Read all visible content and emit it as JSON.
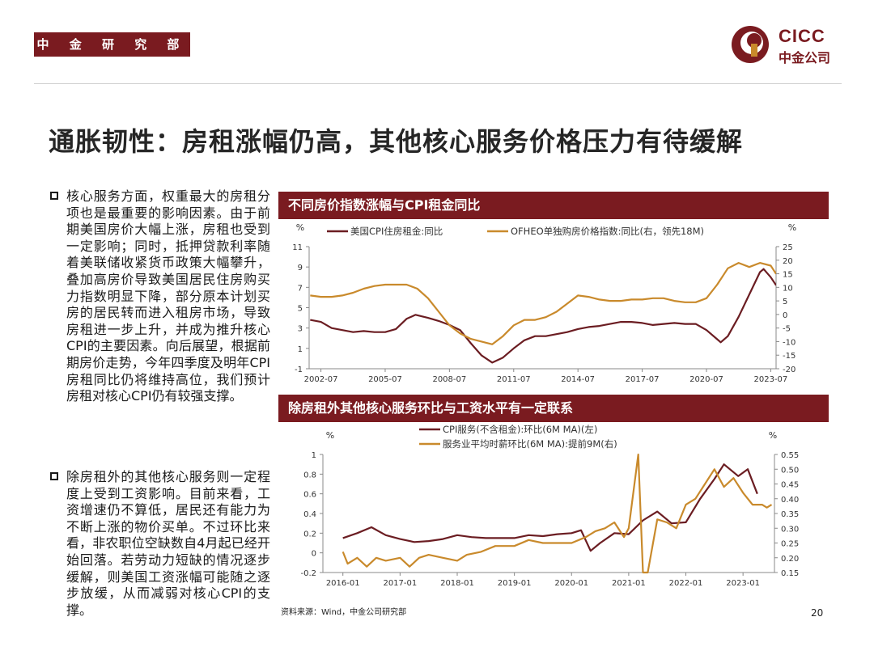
{
  "header": {
    "dept_label": "中 金 研 究 部",
    "logo_en": "CICC",
    "logo_cn": "中金公司"
  },
  "page_title": "通胀韧性：房租涨幅仍高，其他核心服务价格压力有待缓解",
  "bullets": [
    "核心服务方面，权重最大的房租分项也是最重要的影响因素。由于前期美国房价大幅上涨，房租也受到一定影响；同时，抵押贷款利率随着美联储收紧货币政策大幅攀升，叠加高房价导致美国居民住房购买力指数明显下降，部分原本计划买房的居民转而进入租房市场，导致房租进一步上升，并成为推升核心CPI的主要因素。向后展望，根据前期房价走势，今年四季度及明年CPI房租同比仍将维持高位，我们预计房租对核心CPI仍有较强支撑。",
    "除房租外的其他核心服务则一定程度上受到工资影响。目前来看，工资增速仍不算低，居民还有能力为不断上涨的物价买单。不过环比来看，非农职位空缺数自4月起已经开始回落。若劳动力短缺的情况逐步缓解，则美国工资涨幅可能随之逐步放缓，从而减弱对核心CPI的支撑。"
  ],
  "footer": {
    "source": "资料来源：Wind，中金公司研究部",
    "page_number": "20"
  },
  "colors": {
    "brand": "#7a1b20",
    "series_dark": "#6b1d22",
    "series_gold": "#c98a2c"
  },
  "chart_data": [
    {
      "type": "line",
      "title": "不同房价指数涨幅与CPI租金同比",
      "left_axis_unit": "%",
      "right_axis_unit": "%",
      "x_ticks": [
        "2002-07",
        "2005-07",
        "2008-07",
        "2011-07",
        "2014-07",
        "2017-07",
        "2020-07",
        "2023-07"
      ],
      "ylim_left": [
        -1,
        11
      ],
      "y_ticks_left": [
        -1,
        1,
        3,
        5,
        7,
        9,
        11
      ],
      "ylim_right": [
        -20,
        25
      ],
      "y_ticks_right": [
        -20,
        -15,
        -10,
        -5,
        0,
        5,
        10,
        15,
        20,
        25
      ],
      "legend_position": "top",
      "grid": false,
      "series": [
        {
          "name": "美国CPI住房租金:同比",
          "axis": "left",
          "color": "#6b1d22",
          "points": [
            [
              "2002-01",
              3.8
            ],
            [
              "2002-07",
              3.6
            ],
            [
              "2003-01",
              3.0
            ],
            [
              "2003-07",
              2.8
            ],
            [
              "2004-01",
              2.6
            ],
            [
              "2004-07",
              2.7
            ],
            [
              "2005-01",
              2.6
            ],
            [
              "2005-07",
              2.6
            ],
            [
              "2006-01",
              2.9
            ],
            [
              "2006-07",
              3.9
            ],
            [
              "2006-12",
              4.3
            ],
            [
              "2007-07",
              4.0
            ],
            [
              "2008-01",
              3.7
            ],
            [
              "2008-07",
              3.3
            ],
            [
              "2009-01",
              2.8
            ],
            [
              "2009-07",
              1.5
            ],
            [
              "2010-01",
              0.3
            ],
            [
              "2010-07",
              -0.4
            ],
            [
              "2011-01",
              0.1
            ],
            [
              "2011-07",
              1.0
            ],
            [
              "2012-01",
              1.8
            ],
            [
              "2012-07",
              2.2
            ],
            [
              "2013-01",
              2.2
            ],
            [
              "2013-07",
              2.4
            ],
            [
              "2014-01",
              2.6
            ],
            [
              "2014-07",
              2.9
            ],
            [
              "2015-01",
              3.1
            ],
            [
              "2015-07",
              3.2
            ],
            [
              "2016-01",
              3.4
            ],
            [
              "2016-07",
              3.6
            ],
            [
              "2017-01",
              3.6
            ],
            [
              "2017-07",
              3.5
            ],
            [
              "2018-01",
              3.3
            ],
            [
              "2018-07",
              3.4
            ],
            [
              "2019-01",
              3.5
            ],
            [
              "2019-07",
              3.4
            ],
            [
              "2020-01",
              3.4
            ],
            [
              "2020-07",
              2.8
            ],
            [
              "2021-01",
              1.9
            ],
            [
              "2021-03",
              1.6
            ],
            [
              "2021-07",
              2.2
            ],
            [
              "2022-01",
              4.1
            ],
            [
              "2022-07",
              6.3
            ],
            [
              "2023-01",
              8.5
            ],
            [
              "2023-03",
              8.8
            ],
            [
              "2023-07",
              8.0
            ],
            [
              "2023-10",
              7.2
            ]
          ]
        },
        {
          "name": "OFHEO单独购房价格指数:同比(右，领先18M)",
          "axis": "right",
          "color": "#c98a2c",
          "points": [
            [
              "2002-01",
              7
            ],
            [
              "2002-07",
              6.5
            ],
            [
              "2003-01",
              6.5
            ],
            [
              "2003-07",
              7
            ],
            [
              "2004-01",
              8
            ],
            [
              "2004-07",
              9.5
            ],
            [
              "2005-01",
              10.5
            ],
            [
              "2005-07",
              11
            ],
            [
              "2006-01",
              11
            ],
            [
              "2006-07",
              11
            ],
            [
              "2007-01",
              9.5
            ],
            [
              "2007-07",
              6
            ],
            [
              "2008-01",
              1
            ],
            [
              "2008-07",
              -4
            ],
            [
              "2009-01",
              -7
            ],
            [
              "2009-07",
              -9
            ],
            [
              "2010-01",
              -10
            ],
            [
              "2010-07",
              -11
            ],
            [
              "2011-01",
              -8
            ],
            [
              "2011-07",
              -4
            ],
            [
              "2012-01",
              -2
            ],
            [
              "2012-07",
              -2
            ],
            [
              "2013-01",
              -1
            ],
            [
              "2013-07",
              1
            ],
            [
              "2014-01",
              4
            ],
            [
              "2014-07",
              7
            ],
            [
              "2015-01",
              6.5
            ],
            [
              "2015-07",
              5.5
            ],
            [
              "2016-01",
              5
            ],
            [
              "2016-07",
              5
            ],
            [
              "2017-01",
              5.5
            ],
            [
              "2017-07",
              5.5
            ],
            [
              "2018-01",
              6
            ],
            [
              "2018-07",
              6
            ],
            [
              "2019-01",
              5
            ],
            [
              "2019-07",
              4.5
            ],
            [
              "2020-01",
              4.5
            ],
            [
              "2020-07",
              6
            ],
            [
              "2021-01",
              11
            ],
            [
              "2021-07",
              17
            ],
            [
              "2022-01",
              19
            ],
            [
              "2022-07",
              17.5
            ],
            [
              "2023-01",
              19
            ],
            [
              "2023-07",
              18
            ],
            [
              "2023-10",
              15
            ]
          ]
        }
      ]
    },
    {
      "type": "line",
      "title": "除房租外其他核心服务环比与工资水平有一定联系",
      "left_axis_unit": "%",
      "right_axis_unit": "%",
      "x_ticks": [
        "2016-01",
        "2017-01",
        "2018-01",
        "2019-01",
        "2020-01",
        "2021-01",
        "2022-01",
        "2023-01"
      ],
      "ylim_left": [
        -0.2,
        1.0
      ],
      "y_ticks_left": [
        -0.2,
        0.0,
        0.2,
        0.4,
        0.6,
        0.8,
        1.0
      ],
      "ylim_right": [
        0.15,
        0.55
      ],
      "y_ticks_right": [
        0.15,
        0.2,
        0.25,
        0.3,
        0.35,
        0.4,
        0.45,
        0.5,
        0.55
      ],
      "legend_position": "top",
      "grid": false,
      "series": [
        {
          "name": "CPI服务(不含租金):环比(6M MA)(左)",
          "axis": "left",
          "color": "#6b1d22",
          "points": [
            [
              "2016-01",
              0.15
            ],
            [
              "2016-04",
              0.2
            ],
            [
              "2016-07",
              0.26
            ],
            [
              "2016-10",
              0.18
            ],
            [
              "2017-01",
              0.14
            ],
            [
              "2017-04",
              0.11
            ],
            [
              "2017-07",
              0.12
            ],
            [
              "2017-10",
              0.14
            ],
            [
              "2018-01",
              0.18
            ],
            [
              "2018-04",
              0.16
            ],
            [
              "2018-07",
              0.15
            ],
            [
              "2018-10",
              0.15
            ],
            [
              "2019-01",
              0.15
            ],
            [
              "2019-04",
              0.18
            ],
            [
              "2019-07",
              0.17
            ],
            [
              "2019-10",
              0.19
            ],
            [
              "2020-01",
              0.2
            ],
            [
              "2020-03",
              0.23
            ],
            [
              "2020-05",
              0.02
            ],
            [
              "2020-07",
              0.1
            ],
            [
              "2020-10",
              0.2
            ],
            [
              "2021-01",
              0.19
            ],
            [
              "2021-04",
              0.33
            ],
            [
              "2021-07",
              0.42
            ],
            [
              "2021-10",
              0.3
            ],
            [
              "2022-01",
              0.31
            ],
            [
              "2022-04",
              0.55
            ],
            [
              "2022-07",
              0.75
            ],
            [
              "2022-09",
              0.9
            ],
            [
              "2022-12",
              0.78
            ],
            [
              "2023-02",
              0.85
            ],
            [
              "2023-04",
              0.6
            ]
          ]
        },
        {
          "name": "服务业平均时薪环比(6M MA):提前9M(右)",
          "axis": "right",
          "color": "#c98a2c",
          "points": [
            [
              "2016-01",
              0.22
            ],
            [
              "2016-02",
              0.18
            ],
            [
              "2016-04",
              0.2
            ],
            [
              "2016-06",
              0.17
            ],
            [
              "2016-08",
              0.2
            ],
            [
              "2016-10",
              0.19
            ],
            [
              "2017-01",
              0.2
            ],
            [
              "2017-03",
              0.17
            ],
            [
              "2017-05",
              0.2
            ],
            [
              "2017-07",
              0.21
            ],
            [
              "2017-10",
              0.2
            ],
            [
              "2018-01",
              0.19
            ],
            [
              "2018-03",
              0.21
            ],
            [
              "2018-06",
              0.22
            ],
            [
              "2018-09",
              0.24
            ],
            [
              "2019-01",
              0.24
            ],
            [
              "2019-04",
              0.26
            ],
            [
              "2019-07",
              0.25
            ],
            [
              "2019-10",
              0.25
            ],
            [
              "2020-01",
              0.25
            ],
            [
              "2020-04",
              0.27
            ],
            [
              "2020-06",
              0.29
            ],
            [
              "2020-08",
              0.3
            ],
            [
              "2020-10",
              0.32
            ],
            [
              "2020-12",
              0.27
            ],
            [
              "2021-01",
              0.3
            ],
            [
              "2021-03",
              0.55
            ],
            [
              "2021-04",
              0.15
            ],
            [
              "2021-05",
              0.15
            ],
            [
              "2021-07",
              0.33
            ],
            [
              "2021-09",
              0.32
            ],
            [
              "2021-11",
              0.3
            ],
            [
              "2022-01",
              0.38
            ],
            [
              "2022-03",
              0.4
            ],
            [
              "2022-05",
              0.45
            ],
            [
              "2022-07",
              0.5
            ],
            [
              "2022-09",
              0.44
            ],
            [
              "2022-11",
              0.47
            ],
            [
              "2023-01",
              0.42
            ],
            [
              "2023-03",
              0.38
            ],
            [
              "2023-05",
              0.38
            ],
            [
              "2023-06",
              0.37
            ],
            [
              "2023-07",
              0.38
            ]
          ]
        }
      ]
    }
  ]
}
